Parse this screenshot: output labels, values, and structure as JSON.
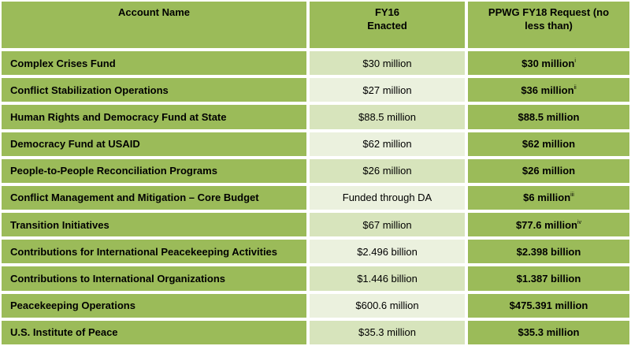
{
  "table": {
    "headers": {
      "account": "Account Name",
      "fy16_line1": "FY16",
      "fy16_line2": "Enacted",
      "fy18_line1": "PPWG FY18 Request (no",
      "fy18_line2": "less than)"
    },
    "rows": [
      {
        "name": "Complex Crises Fund",
        "fy16": "$30 million",
        "fy18": "$30 million",
        "note": "i"
      },
      {
        "name": "Conflict Stabilization Operations",
        "fy16": "$27 million",
        "fy18": "$36 million",
        "note": "ii"
      },
      {
        "name": "Human Rights and Democracy Fund at State",
        "fy16": "$88.5 million",
        "fy18": "$88.5 million",
        "note": ""
      },
      {
        "name": "Democracy Fund at USAID",
        "fy16": "$62 million",
        "fy18": "$62 million",
        "note": ""
      },
      {
        "name": "People-to-People Reconciliation Programs",
        "fy16": "$26 million",
        "fy18": "$26 million",
        "note": ""
      },
      {
        "name": "Conflict Management and Mitigation – Core Budget",
        "fy16": "Funded through DA",
        "fy18": "$6 million",
        "note": "iii"
      },
      {
        "name": "Transition Initiatives",
        "fy16": "$67 million",
        "fy18": "$77.6 million",
        "note": "iv"
      },
      {
        "name": "Contributions for International Peacekeeping Activities",
        "fy16": "$2.496 billion",
        "fy18": "$2.398 billion",
        "note": ""
      },
      {
        "name": "Contributions to International Organizations",
        "fy16": "$1.446 billion",
        "fy18": "$1.387 billion",
        "note": ""
      },
      {
        "name": "Peacekeeping Operations",
        "fy16": "$600.6 million",
        "fy18": "$475.391 million",
        "note": ""
      },
      {
        "name": "U.S. Institute of Peace",
        "fy16": "$35.3 million",
        "fy18": "$35.3 million",
        "note": ""
      }
    ]
  },
  "colors": {
    "green_dark": "#9bbb59",
    "green_mid": "#d7e4bc",
    "green_light": "#ebf1de"
  }
}
